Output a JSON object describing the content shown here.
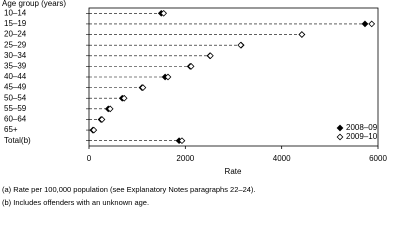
{
  "chart_data": {
    "type": "dot",
    "y_label": "Age group (years)",
    "x_label": "Rate",
    "categories": [
      "10–14",
      "15–19",
      "20–24",
      "25–29",
      "30–34",
      "35–39",
      "40–44",
      "45–49",
      "50–54",
      "55–59",
      "60–64",
      "65+",
      "Total(b)"
    ],
    "series": [
      {
        "name": "2008–09",
        "color": "#000000",
        "marker": "filled",
        "values": [
          1500,
          5730,
          4420,
          3160,
          2510,
          2100,
          1580,
          1100,
          690,
          400,
          250,
          80,
          1870
        ]
      },
      {
        "name": "2009–10",
        "color": "#000000",
        "marker": "open",
        "values": [
          1550,
          5870,
          4420,
          3150,
          2520,
          2120,
          1640,
          1120,
          730,
          440,
          270,
          100,
          1930
        ]
      }
    ],
    "xlim": [
      0,
      6000
    ],
    "xticks": [
      0,
      2000,
      4000,
      6000
    ],
    "legend": "lower right",
    "notes": [
      "(a) Rate per 100,000 population (see Explanatory Notes paragraphs 22–24).",
      "(b) Includes offenders with an unknown age."
    ]
  }
}
